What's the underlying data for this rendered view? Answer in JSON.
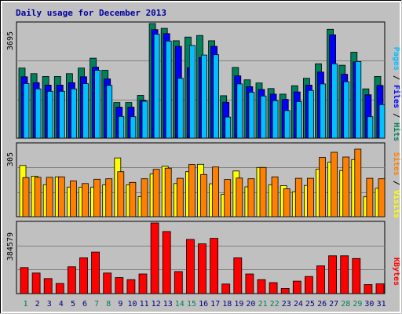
{
  "title": "Daily usage for December 2013",
  "days": [
    "1",
    "2",
    "3",
    "4",
    "5",
    "6",
    "7",
    "8",
    "9",
    "10",
    "11",
    "12",
    "13",
    "14",
    "15",
    "16",
    "17",
    "18",
    "19",
    "20",
    "21",
    "22",
    "23",
    "24",
    "25",
    "26",
    "27",
    "28",
    "29",
    "30",
    "31"
  ],
  "weekend_days": [
    1,
    7,
    8,
    14,
    15,
    21,
    22,
    28,
    29
  ],
  "colors": {
    "hits": "#00805c",
    "files": "#0000ff",
    "pages": "#00c0ff",
    "visits": "#ffff00",
    "sites": "#ff8000",
    "kbytes": "#ff0000",
    "weekday_label": "#000080",
    "weekend_label": "#00805c",
    "background": "#c0c0c0",
    "frame": "#ffffff"
  },
  "axis_max": {
    "top": "3695",
    "middle": "305",
    "bottom": "384579"
  },
  "side_labels": {
    "top": [
      {
        "text": "Pages",
        "color": "#00c0ff"
      },
      {
        "text": " / ",
        "color": "#000000"
      },
      {
        "text": "Files",
        "color": "#0000ff"
      },
      {
        "text": " / ",
        "color": "#000000"
      },
      {
        "text": "Hits",
        "color": "#00805c"
      }
    ],
    "middle": [
      {
        "text": "Sites",
        "color": "#ff8000"
      },
      {
        "text": " / ",
        "color": "#000000"
      },
      {
        "text": "Visits",
        "color": "#ffff00"
      }
    ],
    "bottom": [
      {
        "text": "KBytes",
        "color": "#ff0000"
      }
    ]
  },
  "chart_data": {
    "type": "bar",
    "panels": [
      {
        "id": "top",
        "ymax": 3695,
        "series": [
          {
            "name": "Hits",
            "values": [
              2260,
              2080,
              1990,
              1990,
              2080,
              2260,
              2580,
              2190,
              1150,
              1150,
              1380,
              3695,
              3540,
              3140,
              3260,
              3310,
              3140,
              1370,
              2280,
              1880,
              1780,
              1600,
              1420,
              1690,
              1930,
              2400,
              3510,
              2350,
              2770,
              1590,
              1990
            ]
          },
          {
            "name": "Files",
            "values": [
              1980,
              1790,
              1710,
              1710,
              1790,
              1980,
              2290,
              1910,
              1000,
              1000,
              1220,
              3500,
              3370,
              2960,
              2270,
              2600,
              2960,
              1160,
              2010,
              1660,
              1570,
              1420,
              1250,
              1490,
              1710,
              2130,
              3330,
              2060,
              2460,
              1400,
              1700
            ]
          },
          {
            "name": "Pages",
            "values": [
              1760,
              1590,
              1510,
              1510,
              1590,
              1760,
              2190,
              1700,
              700,
              690,
              1190,
              3350,
              3130,
              1930,
              2990,
              2680,
              2690,
              680,
              1750,
              1480,
              1360,
              1210,
              890,
              1180,
              1540,
              1750,
              2400,
              1820,
              2470,
              690,
              1080
            ]
          }
        ]
      },
      {
        "id": "middle",
        "ymax": 305,
        "series": [
          {
            "name": "Visits",
            "values": [
              216,
              171,
              135,
              168,
              125,
              124,
              125,
              135,
              248,
              135,
              85,
              180,
              213,
              140,
              190,
              221,
              139,
              94,
              193,
              126,
              208,
              135,
              131,
              105,
              132,
              201,
              230,
              195,
              241,
              84,
              120
            ]
          },
          {
            "name": "Sites",
            "values": [
              165,
              166,
              166,
              168,
              151,
              140,
              158,
              160,
              190,
              145,
              160,
              200,
              205,
              162,
              220,
              178,
              210,
              157,
              163,
              160,
              208,
              168,
              118,
              162,
              162,
              250,
              272,
              252,
              285,
              162,
              160
            ]
          }
        ]
      },
      {
        "id": "bottom",
        "ymax": 384579,
        "series": [
          {
            "name": "KBytes",
            "values": [
              142000,
              112000,
              82000,
              55000,
              146000,
              195000,
              226000,
              112000,
              87000,
              76000,
              107000,
              384579,
              338000,
              120000,
              295000,
              271000,
              301000,
              52000,
              195000,
              107000,
              76000,
              60000,
              28000,
              68000,
              93000,
              151000,
              206000,
              206000,
              191000,
              49000,
              53000
            ]
          }
        ]
      }
    ]
  }
}
